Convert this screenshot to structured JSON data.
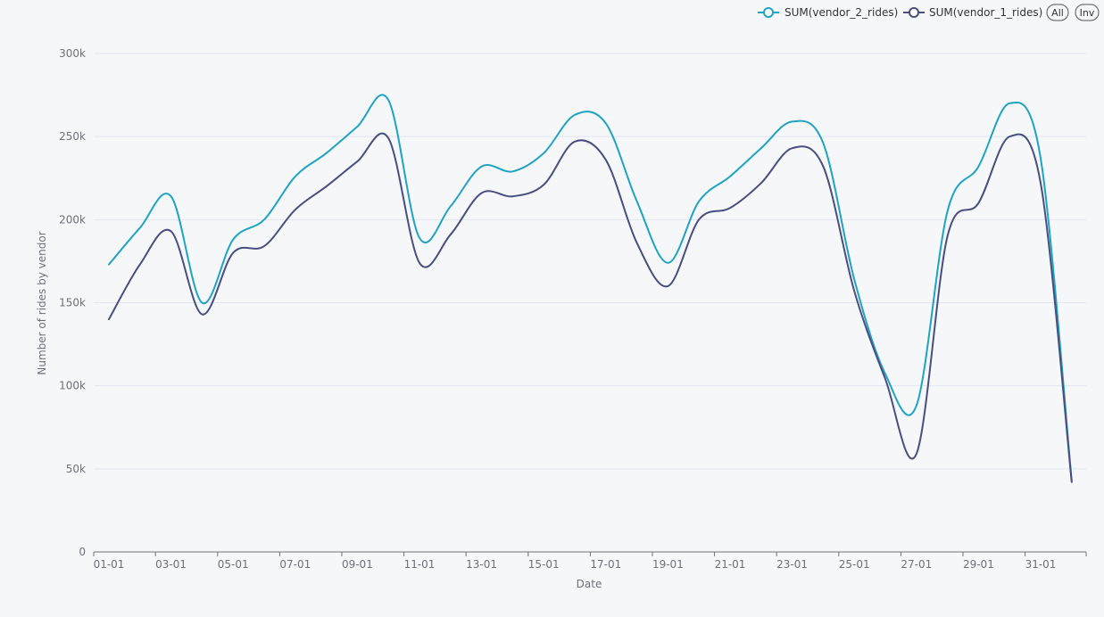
{
  "chart_data": {
    "type": "line",
    "xlabel": "Date",
    "ylabel": "Number of rides by vendor",
    "ylim": [
      0,
      300000
    ],
    "y_ticks": [
      0,
      50000,
      100000,
      150000,
      200000,
      250000,
      300000
    ],
    "y_tick_labels": [
      "0",
      "50k",
      "100k",
      "150k",
      "200k",
      "250k",
      "300k"
    ],
    "x_tick_labels": [
      "01-01",
      "03-01",
      "05-01",
      "07-01",
      "09-01",
      "11-01",
      "13-01",
      "15-01",
      "17-01",
      "19-01",
      "21-01",
      "23-01",
      "25-01",
      "27-01",
      "29-01",
      "31-01"
    ],
    "x": [
      "01-01",
      "02-01",
      "03-01",
      "04-01",
      "05-01",
      "06-01",
      "07-01",
      "08-01",
      "09-01",
      "10-01",
      "11-01",
      "12-01",
      "13-01",
      "14-01",
      "15-01",
      "16-01",
      "17-01",
      "18-01",
      "19-01",
      "20-01",
      "21-01",
      "22-01",
      "23-01",
      "24-01",
      "25-01",
      "26-01",
      "27-01",
      "28-01",
      "29-01",
      "30-01",
      "31-01",
      "32-01"
    ],
    "grid": true,
    "legend_position": "top-right",
    "series": [
      {
        "name": "SUM(vendor_2_rides)",
        "color": "#1fa3c3",
        "values": [
          173000,
          195000,
          214000,
          150000,
          188000,
          200000,
          226000,
          240000,
          256000,
          272000,
          189000,
          208000,
          232000,
          229000,
          240000,
          263000,
          258000,
          211000,
          174000,
          211000,
          226000,
          243000,
          259000,
          246000,
          164000,
          107000,
          88000,
          205000,
          232000,
          270000,
          237000,
          43000
        ]
      },
      {
        "name": "SUM(vendor_1_rides)",
        "color": "#484e7f",
        "values": [
          140000,
          173000,
          193000,
          143000,
          180000,
          184000,
          206000,
          220000,
          235000,
          249000,
          174000,
          191000,
          216000,
          214000,
          221000,
          247000,
          236000,
          186000,
          160000,
          200000,
          207000,
          222000,
          243000,
          232000,
          157000,
          104000,
          59000,
          190000,
          210000,
          250000,
          222000,
          42000
        ]
      }
    ]
  },
  "legend": {
    "all_label": "All",
    "inv_label": "Inv"
  }
}
